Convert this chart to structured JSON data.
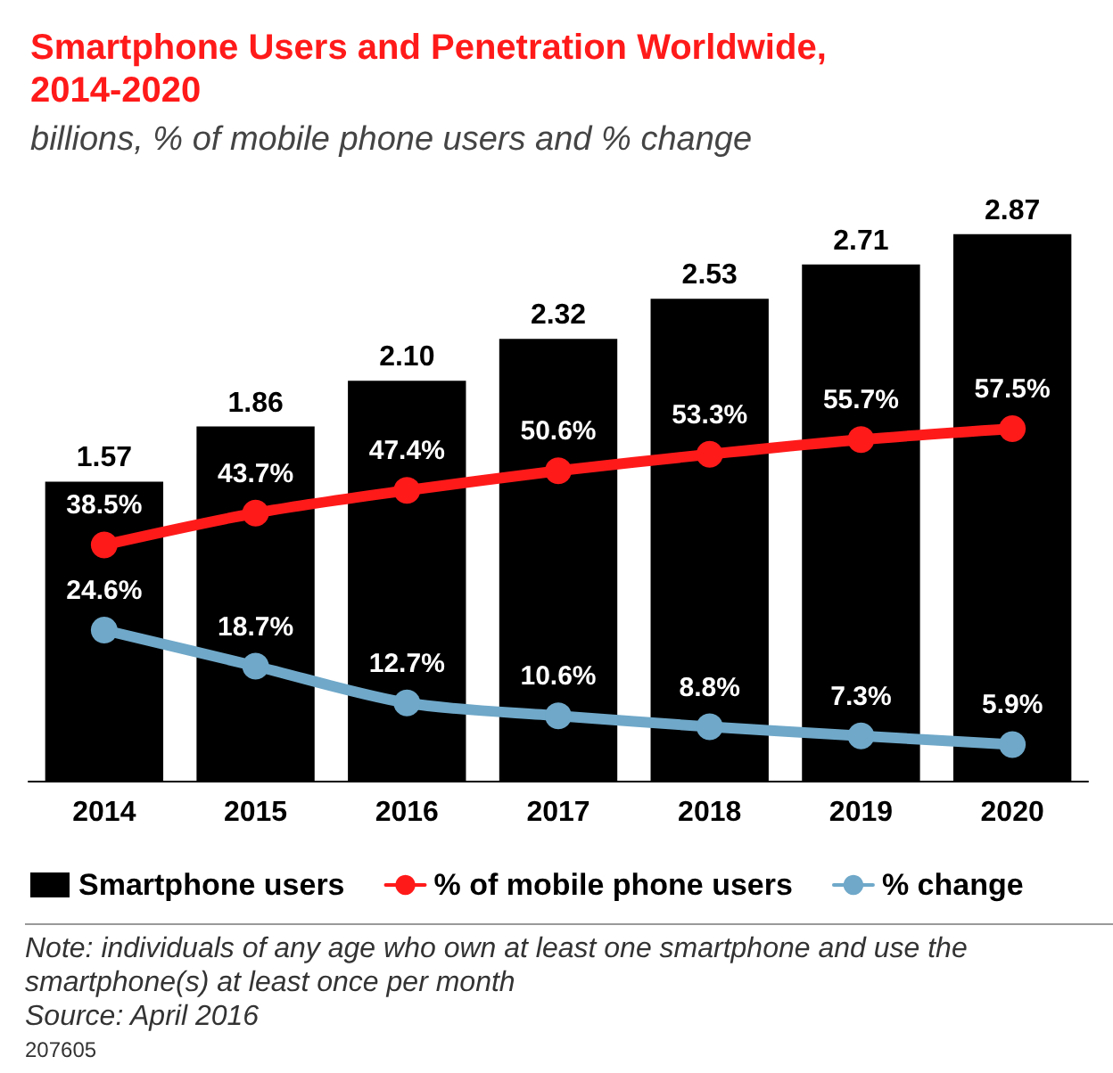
{
  "chart_data": {
    "type": "bar",
    "title": "Smartphone Users and Penetration Worldwide, 2014-2020",
    "subtitle": "billions, % of mobile phone users and % change",
    "categories": [
      "2014",
      "2015",
      "2016",
      "2017",
      "2018",
      "2019",
      "2020"
    ],
    "series": [
      {
        "name": "Smartphone users",
        "color": "#000000",
        "values": [
          1.57,
          1.86,
          2.1,
          2.32,
          2.53,
          2.71,
          2.87
        ],
        "value_labels": [
          "1.57",
          "1.86",
          "2.10",
          "2.32",
          "2.53",
          "2.71",
          "2.87"
        ]
      },
      {
        "name": "% of mobile phone users",
        "type": "line",
        "axis": "y2",
        "color": "#ff1a1a",
        "values": [
          38.5,
          43.7,
          47.4,
          50.6,
          53.3,
          55.7,
          57.5
        ],
        "value_labels": [
          "38.5%",
          "43.7%",
          "47.4%",
          "50.6%",
          "53.3%",
          "55.7%",
          "57.5%"
        ]
      },
      {
        "name": "% change",
        "type": "line",
        "axis": "y2",
        "color": "#6fa8c9",
        "values": [
          24.6,
          18.7,
          12.7,
          10.6,
          8.8,
          7.3,
          5.9
        ],
        "value_labels": [
          "24.6%",
          "18.7%",
          "12.7%",
          "10.6%",
          "8.8%",
          "7.3%",
          "5.9%"
        ]
      }
    ],
    "tick_labels": "x",
    "marker": "circle",
    "line_style": "solid",
    "legend": "bottom",
    "annotations": [
      "Note: individuals of any age who own at least one smartphone and use the smartphone(s) at least once per month",
      "Source: April 2016",
      "207605"
    ]
  }
}
